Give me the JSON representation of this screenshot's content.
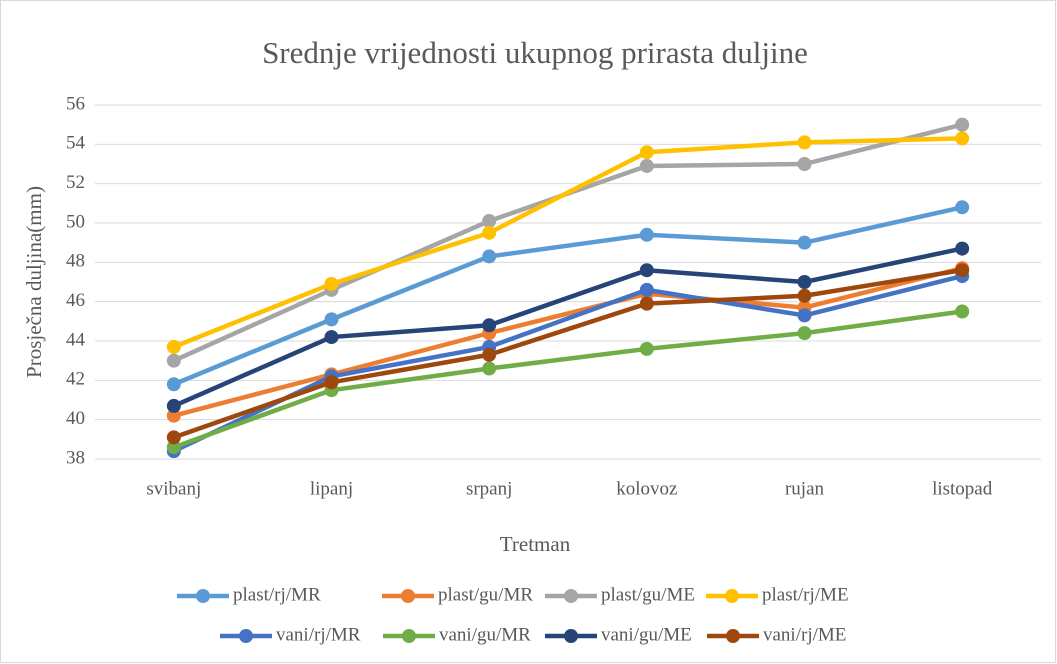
{
  "chart_data": {
    "type": "line",
    "title": "Srednje vrijednosti ukupnog prirasta duljine",
    "x_label": "Tretman",
    "y_label": "Prosječna duljina(mm)",
    "categories": [
      "svibanj",
      "lipanj",
      "srpanj",
      "kolovoz",
      "rujan",
      "listopad"
    ],
    "ylim": [
      38,
      56
    ],
    "yticks": [
      38,
      40,
      42,
      44,
      46,
      48,
      50,
      52,
      54,
      56
    ],
    "grid": true,
    "legend": "bottom",
    "series": [
      {
        "name": "plast/rj/MR",
        "color": "#5b9bd5",
        "values": [
          41.8,
          45.1,
          48.3,
          49.4,
          49.0,
          50.8
        ]
      },
      {
        "name": "plast/gu/MR",
        "color": "#ed7d31",
        "values": [
          40.2,
          42.3,
          44.4,
          46.4,
          45.7,
          47.7
        ]
      },
      {
        "name": "plast/gu/ME",
        "color": "#a5a5a5",
        "values": [
          43.0,
          46.6,
          50.1,
          52.9,
          53.0,
          55.0
        ]
      },
      {
        "name": "plast/rj/ME",
        "color": "#ffc000",
        "values": [
          43.7,
          46.9,
          49.5,
          53.6,
          54.1,
          54.3
        ]
      },
      {
        "name": "vani/rj/MR",
        "color": "#4472c4",
        "values": [
          38.4,
          42.2,
          43.7,
          46.6,
          45.3,
          47.3
        ]
      },
      {
        "name": "vani/gu/MR",
        "color": "#70ad47",
        "values": [
          38.6,
          41.5,
          42.6,
          43.6,
          44.4,
          45.5
        ]
      },
      {
        "name": "vani/gu/ME",
        "color": "#264478",
        "values": [
          40.7,
          44.2,
          44.8,
          47.6,
          47.0,
          48.7
        ]
      },
      {
        "name": "vani/rj/ME",
        "color": "#9e480e",
        "values": [
          39.1,
          41.9,
          43.3,
          45.9,
          46.3,
          47.6
        ]
      }
    ]
  }
}
